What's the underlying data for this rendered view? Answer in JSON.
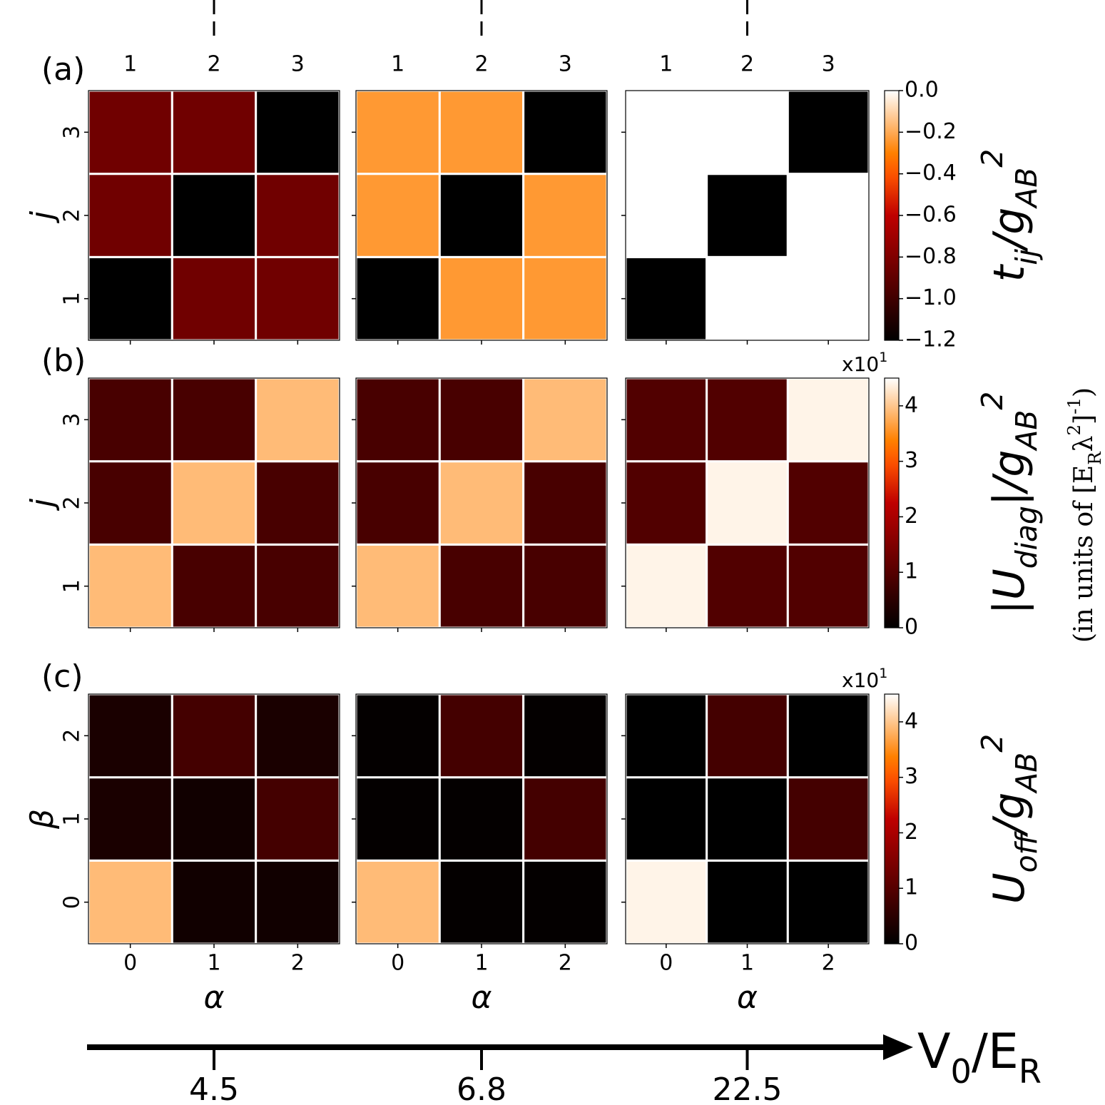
{
  "chart_data": [
    {
      "type": "heatmap",
      "panel_label": "(a)",
      "x_categories": [
        "1",
        "2",
        "3"
      ],
      "x_ticks_position": "top",
      "ylabel": "j",
      "y_categories": [
        "1",
        "2",
        "3"
      ],
      "colormap": "gist_heat",
      "clim": [
        -1.2,
        0
      ],
      "cticks": [
        {
          "value": 0,
          "label": "0.0"
        },
        {
          "value": -0.2,
          "label": "−0.2"
        },
        {
          "value": -0.4,
          "label": "−0.4"
        },
        {
          "value": -0.6,
          "label": "−0.6"
        },
        {
          "value": -0.8,
          "label": "−0.8"
        },
        {
          "value": -1.0,
          "label": "−1.0"
        },
        {
          "value": -1.2,
          "label": "−1.2"
        }
      ],
      "colorbar_label": [
        {
          "text": "t"
        },
        {
          "text": "ij",
          "shift": "sub"
        },
        {
          "text": "/g"
        },
        {
          "text": "AB",
          "shift": "sub"
        },
        {
          "text": "2",
          "shift": "super"
        }
      ],
      "panels": [
        {
          "values": [
            [
              -1.2,
              -0.85,
              -0.85
            ],
            [
              -0.85,
              -1.2,
              -0.85
            ],
            [
              -0.85,
              -0.85,
              -1.2
            ]
          ]
        },
        {
          "values": [
            [
              -1.2,
              -0.24,
              -0.24
            ],
            [
              -0.24,
              -1.2,
              -0.24
            ],
            [
              -0.24,
              -0.24,
              -1.2
            ]
          ]
        },
        {
          "values": [
            [
              -1.2,
              0,
              0
            ],
            [
              0,
              -1.2,
              0
            ],
            [
              0,
              0,
              -1.2
            ]
          ]
        }
      ]
    },
    {
      "type": "heatmap",
      "panel_label": "(b)",
      "ylabel": "j",
      "y_categories": [
        "1",
        "2",
        "3"
      ],
      "colormap": "gist_heat",
      "clim": [
        0,
        4.5
      ],
      "cticks": [
        0,
        1,
        2,
        3,
        4
      ],
      "colorbar_multiplier": [
        {
          "text": "x10"
        },
        {
          "text": "1",
          "shift": "super"
        }
      ],
      "colorbar_label": [
        {
          "text": "|U"
        },
        {
          "text": "diag",
          "shift": "sub"
        },
        {
          "text": "|/g"
        },
        {
          "text": "AB",
          "shift": "sub"
        },
        {
          "text": "2",
          "shift": "super"
        }
      ],
      "panels": [
        {
          "values": [
            [
              3.9,
              0.85,
              0.85
            ],
            [
              0.85,
              3.9,
              0.85
            ],
            [
              0.85,
              0.85,
              3.9
            ]
          ]
        },
        {
          "values": [
            [
              3.9,
              0.85,
              0.85
            ],
            [
              0.85,
              3.9,
              0.85
            ],
            [
              0.85,
              0.85,
              3.9
            ]
          ]
        },
        {
          "values": [
            [
              4.4,
              0.95,
              0.95
            ],
            [
              0.95,
              4.4,
              0.95
            ],
            [
              0.95,
              0.95,
              4.4
            ]
          ]
        }
      ]
    },
    {
      "type": "heatmap",
      "panel_label": "(c)",
      "x_categories": [
        "0",
        "1",
        "2"
      ],
      "x_ticks_position": "bottom",
      "xlabel": "α",
      "ylabel": "β",
      "y_categories": [
        "0",
        "1",
        "2"
      ],
      "colormap": "gist_heat",
      "clim": [
        0,
        4.5
      ],
      "cticks": [
        0,
        1,
        2,
        3,
        4
      ],
      "colorbar_multiplier": [
        {
          "text": "x10"
        },
        {
          "text": "1",
          "shift": "super"
        }
      ],
      "colorbar_label": [
        {
          "text": "U"
        },
        {
          "text": "off",
          "shift": "sub"
        },
        {
          "text": "/g"
        },
        {
          "text": "AB",
          "shift": "sub"
        },
        {
          "text": "2",
          "shift": "super"
        }
      ],
      "panels": [
        {
          "values": [
            [
              3.9,
              0.2,
              0.2
            ],
            [
              0.3,
              0.2,
              0.8
            ],
            [
              0.3,
              0.8,
              0.3
            ]
          ]
        },
        {
          "values": [
            [
              3.9,
              0.05,
              0.05
            ],
            [
              0.05,
              0.05,
              0.8
            ],
            [
              0.05,
              0.8,
              0.05
            ]
          ]
        },
        {
          "values": [
            [
              4.4,
              0,
              0
            ],
            [
              0,
              0,
              0.8
            ],
            [
              0,
              0.8,
              0
            ]
          ]
        }
      ]
    }
  ],
  "v0_axis": {
    "label": [
      {
        "text": "V"
      },
      {
        "text": "0",
        "shift": "sub"
      },
      {
        "text": "/E"
      },
      {
        "text": "R",
        "shift": "sub"
      }
    ],
    "categories": [
      "4.5",
      "6.8",
      "22.5"
    ]
  },
  "units_note": [
    {
      "text": "(in units of [E"
    },
    {
      "text": "R",
      "shift": "sub"
    },
    {
      "text": "λ"
    },
    {
      "text": "2",
      "shift": "super"
    },
    {
      "text": "]"
    },
    {
      "text": "-1",
      "shift": "super"
    },
    {
      "text": ")"
    }
  ]
}
